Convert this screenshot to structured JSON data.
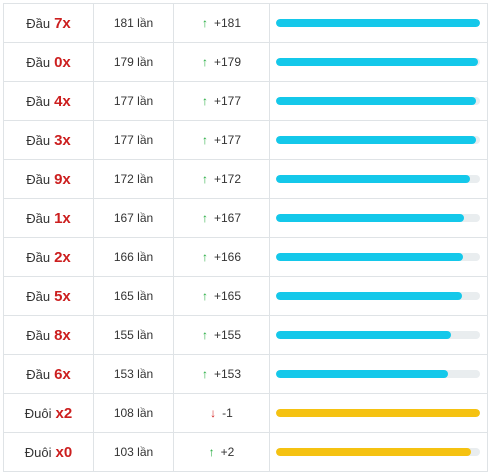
{
  "rows": [
    {
      "prefix": "Đầu",
      "digit": "7x",
      "count": "181 lần",
      "direction": "up",
      "delta": "+181",
      "bar_fraction": 1.0,
      "bar_color": "#14c8ea"
    },
    {
      "prefix": "Đầu",
      "digit": "0x",
      "count": "179 lần",
      "direction": "up",
      "delta": "+179",
      "bar_fraction": 0.99,
      "bar_color": "#14c8ea"
    },
    {
      "prefix": "Đầu",
      "digit": "4x",
      "count": "177 lần",
      "direction": "up",
      "delta": "+177",
      "bar_fraction": 0.978,
      "bar_color": "#14c8ea"
    },
    {
      "prefix": "Đầu",
      "digit": "3x",
      "count": "177 lần",
      "direction": "up",
      "delta": "+177",
      "bar_fraction": 0.978,
      "bar_color": "#14c8ea"
    },
    {
      "prefix": "Đầu",
      "digit": "9x",
      "count": "172 lần",
      "direction": "up",
      "delta": "+172",
      "bar_fraction": 0.95,
      "bar_color": "#14c8ea"
    },
    {
      "prefix": "Đầu",
      "digit": "1x",
      "count": "167 lần",
      "direction": "up",
      "delta": "+167",
      "bar_fraction": 0.923,
      "bar_color": "#14c8ea"
    },
    {
      "prefix": "Đầu",
      "digit": "2x",
      "count": "166 lần",
      "direction": "up",
      "delta": "+166",
      "bar_fraction": 0.917,
      "bar_color": "#14c8ea"
    },
    {
      "prefix": "Đầu",
      "digit": "5x",
      "count": "165 lần",
      "direction": "up",
      "delta": "+165",
      "bar_fraction": 0.912,
      "bar_color": "#14c8ea"
    },
    {
      "prefix": "Đầu",
      "digit": "8x",
      "count": "155 lần",
      "direction": "up",
      "delta": "+155",
      "bar_fraction": 0.856,
      "bar_color": "#14c8ea"
    },
    {
      "prefix": "Đầu",
      "digit": "6x",
      "count": "153 lần",
      "direction": "up",
      "delta": "+153",
      "bar_fraction": 0.845,
      "bar_color": "#14c8ea"
    },
    {
      "prefix": "Đuôi",
      "digit": "x2",
      "count": "108 lần",
      "direction": "down",
      "delta": "-1",
      "bar_fraction": 1.0,
      "bar_color": "#f5c211"
    },
    {
      "prefix": "Đuôi",
      "digit": "x0",
      "count": "103 lần",
      "direction": "up",
      "delta": "+2",
      "bar_fraction": 0.954,
      "bar_color": "#f5c211"
    }
  ],
  "icons": {
    "up": "↑",
    "down": "↓"
  }
}
